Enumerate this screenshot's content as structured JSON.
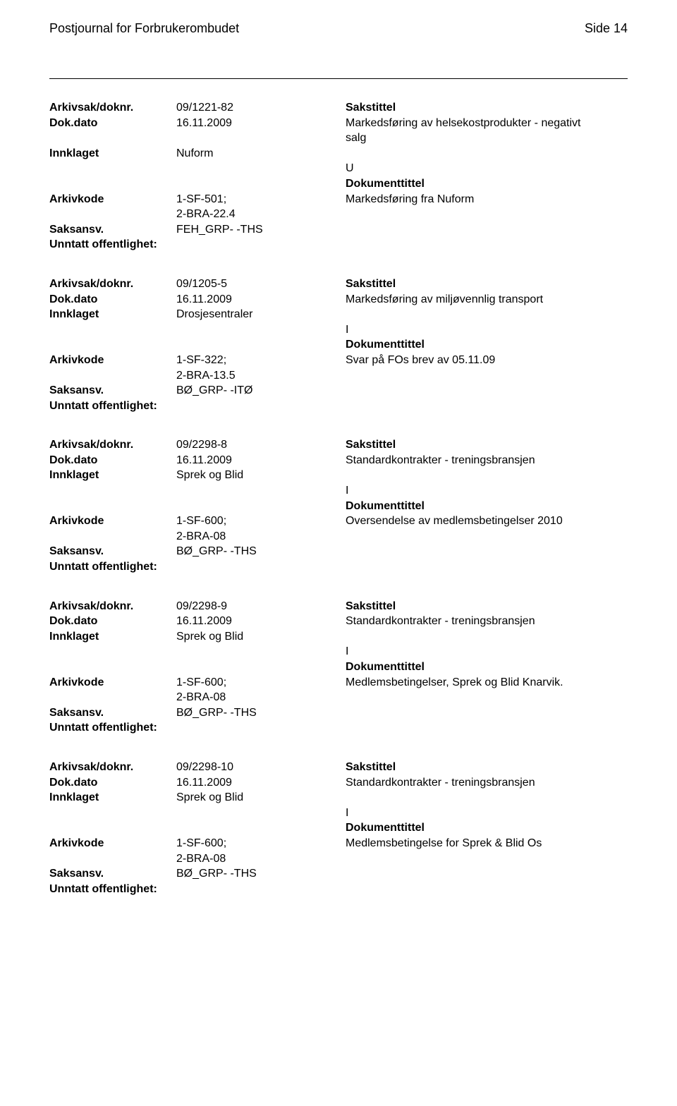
{
  "header": {
    "left": "Postjournal for Forbrukerombudet",
    "right": "Side 14"
  },
  "labels": {
    "arkivsak": "Arkivsak/doknr.",
    "dokdato": "Dok.dato",
    "innklaget": "Innklaget",
    "arkivkode": "Arkivkode",
    "saksansv": "Saksansv.",
    "unntatt": "Unntatt offentlighet:",
    "sakstittel": "Sakstittel",
    "dokumenttittel": "Dokumenttittel"
  },
  "blocks": [
    {
      "arkivsak": "09/1221-82",
      "dokdato": "16.11.2009",
      "sakstittel_lines": [
        "Markedsføring av helsekostprodukter - negativt",
        "salg"
      ],
      "innklaget": "Nuform",
      "io": "U",
      "arkivkode_lines": [
        "1-SF-501;",
        "2-BRA-22.4"
      ],
      "dokumenttittel": "Markedsføring fra Nuform",
      "saksansv": "FEH_GRP- -THS"
    },
    {
      "arkivsak": "09/1205-5",
      "dokdato": "16.11.2009",
      "sakstittel_lines": [
        "Markedsføring av miljøvennlig transport"
      ],
      "innklaget": "Drosjesentraler",
      "io": "I",
      "arkivkode_lines": [
        "1-SF-322;",
        "2-BRA-13.5"
      ],
      "dokumenttittel": "Svar på FOs brev av 05.11.09",
      "saksansv": "BØ_GRP- -ITØ"
    },
    {
      "arkivsak": "09/2298-8",
      "dokdato": "16.11.2009",
      "sakstittel_lines": [
        "Standardkontrakter - treningsbransjen"
      ],
      "innklaget": "Sprek og Blid",
      "io": "I",
      "arkivkode_lines": [
        "1-SF-600;",
        "2-BRA-08"
      ],
      "dokumenttittel": "Oversendelse av medlemsbetingelser 2010",
      "saksansv": "BØ_GRP- -THS"
    },
    {
      "arkivsak": "09/2298-9",
      "dokdato": "16.11.2009",
      "sakstittel_lines": [
        "Standardkontrakter - treningsbransjen"
      ],
      "innklaget": "Sprek og Blid",
      "io": "I",
      "arkivkode_lines": [
        "1-SF-600;",
        "2-BRA-08"
      ],
      "dokumenttittel": "Medlemsbetingelser, Sprek og Blid Knarvik.",
      "saksansv": "BØ_GRP- -THS"
    },
    {
      "arkivsak": "09/2298-10",
      "dokdato": "16.11.2009",
      "sakstittel_lines": [
        "Standardkontrakter - treningsbransjen"
      ],
      "innklaget": "Sprek og Blid",
      "io": "I",
      "arkivkode_lines": [
        "1-SF-600;",
        "2-BRA-08"
      ],
      "dokumenttittel": "Medlemsbetingelse for Sprek & Blid Os",
      "saksansv": "BØ_GRP- -THS"
    }
  ]
}
